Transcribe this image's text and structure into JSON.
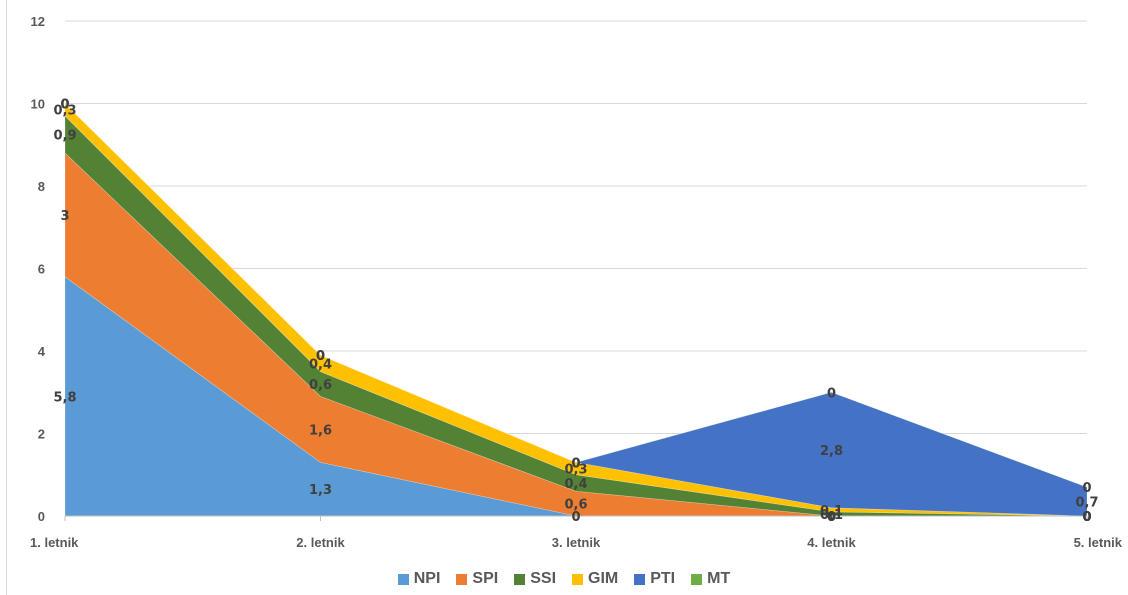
{
  "chart_data": {
    "type": "area",
    "stacked": true,
    "categories": [
      "1. letnik",
      "2. letnik",
      "3. letnik",
      "4. letnik",
      "5. letnik"
    ],
    "ylim": [
      0,
      12
    ],
    "yticks": [
      "0",
      "2",
      "4",
      "6",
      "8",
      "10",
      "12"
    ],
    "grid": true,
    "legend_position": "bottom",
    "series": [
      {
        "name": "NPI",
        "color": "#5b9bd5",
        "values": [
          5.8,
          1.3,
          0,
          0,
          0
        ],
        "labels": [
          "5,8",
          "1,3",
          "0",
          "0",
          "0"
        ]
      },
      {
        "name": "SPI",
        "color": "#ed7d31",
        "values": [
          3,
          1.6,
          0.6,
          0,
          0
        ],
        "labels": [
          "3",
          "1,6",
          "0,6",
          "0",
          "0"
        ]
      },
      {
        "name": "SSI",
        "color": "#548235",
        "values": [
          0.9,
          0.6,
          0.4,
          0.1,
          0
        ],
        "labels": [
          "0,9",
          "0,6",
          "0,4",
          "0,1",
          "0"
        ]
      },
      {
        "name": "GIM",
        "color": "#ffc000",
        "values": [
          0.3,
          0.4,
          0.3,
          0.1,
          0
        ],
        "labels": [
          "0,3",
          "0,4",
          "0,3",
          "0,1",
          "0"
        ]
      },
      {
        "name": "PTI",
        "color": "#4472c4",
        "values": [
          0,
          0,
          0,
          2.8,
          0.7
        ],
        "labels": [
          "0",
          "0",
          "0",
          "2,8",
          "0,7"
        ]
      },
      {
        "name": "MT",
        "color": "#70ad47",
        "values": [
          0,
          0,
          0,
          0,
          0
        ],
        "labels": [
          "0",
          "0",
          "0",
          "0",
          "0"
        ]
      }
    ]
  }
}
